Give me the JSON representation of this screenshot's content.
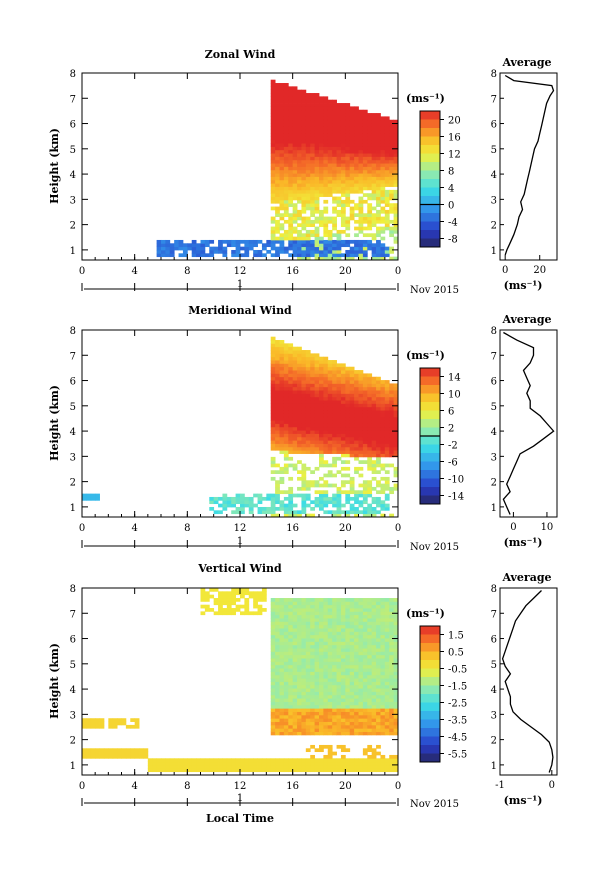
{
  "figure": {
    "x_label": "Local Time",
    "date_label": "Nov 2015",
    "day_label": "1"
  },
  "chart_data": [
    {
      "type": "heatmap",
      "title": "Zonal Wind",
      "ylabel": "Height (km)",
      "xlabel": "Local Time",
      "x_ticks": [
        "0",
        "4",
        "8",
        "12",
        "16",
        "20",
        "0"
      ],
      "xlim": [
        0,
        24
      ],
      "ylim": [
        0.6,
        8
      ],
      "y_ticks": [
        "1",
        "2",
        "3",
        "4",
        "5",
        "6",
        "7",
        "8"
      ],
      "colorbar": {
        "unit": "(ms⁻¹)",
        "ticks": [
          "20",
          "16",
          "12",
          "8",
          "4",
          "0",
          "-4",
          "-8"
        ],
        "range": [
          -10,
          22
        ]
      },
      "profile": {
        "title": "Average",
        "xlabel": "(ms⁻¹)",
        "x_ticks": [
          "0",
          "20"
        ],
        "xlim": [
          -3,
          30
        ],
        "heights": [
          0.8,
          1.0,
          1.3,
          1.6,
          2.0,
          2.3,
          2.6,
          2.9,
          3.2,
          3.5,
          3.8,
          4.1,
          4.4,
          4.7,
          5.0,
          5.3,
          5.6,
          5.9,
          6.2,
          6.5,
          6.8,
          7.1,
          7.3,
          7.5,
          7.7,
          7.9
        ],
        "values": [
          0,
          1,
          3,
          5,
          7,
          8,
          10,
          9,
          11,
          12,
          13,
          14,
          15,
          16,
          17,
          19,
          20,
          21,
          22,
          23,
          24,
          26,
          28,
          27,
          5,
          0
        ]
      }
    },
    {
      "type": "heatmap",
      "title": "Meridional Wind",
      "ylabel": "Height (km)",
      "xlabel": "Local Time",
      "x_ticks": [
        "0",
        "4",
        "8",
        "12",
        "16",
        "20",
        "0"
      ],
      "xlim": [
        0,
        24
      ],
      "ylim": [
        0.6,
        8
      ],
      "y_ticks": [
        "1",
        "2",
        "3",
        "4",
        "5",
        "6",
        "7",
        "8"
      ],
      "colorbar": {
        "unit": "(ms⁻¹)",
        "ticks": [
          "14",
          "10",
          "6",
          "2",
          "-2",
          "-6",
          "-10",
          "-14"
        ],
        "range": [
          -16,
          16
        ]
      },
      "profile": {
        "title": "Average",
        "xlabel": "(ms⁻¹)",
        "x_ticks": [
          "0",
          "10"
        ],
        "xlim": [
          -4,
          13
        ],
        "heights": [
          0.7,
          1.0,
          1.3,
          1.6,
          1.9,
          2.2,
          2.5,
          2.8,
          3.1,
          3.4,
          3.7,
          4.0,
          4.3,
          4.6,
          4.9,
          5.2,
          5.5,
          5.8,
          6.1,
          6.4,
          6.7,
          7.0,
          7.3,
          7.6,
          7.9
        ],
        "values": [
          -1,
          -2,
          -3,
          -1,
          -2,
          -1,
          0,
          1,
          2,
          6,
          9,
          12,
          10,
          8,
          5,
          5,
          4,
          5,
          4,
          3,
          5,
          6,
          6,
          1,
          -3
        ]
      }
    },
    {
      "type": "heatmap",
      "title": "Vertical Wind",
      "ylabel": "Height (km)",
      "xlabel": "Local Time",
      "x_ticks": [
        "0",
        "4",
        "8",
        "12",
        "16",
        "20",
        "0"
      ],
      "xlim": [
        0,
        24
      ],
      "ylim": [
        0.6,
        8
      ],
      "y_ticks": [
        "1",
        "2",
        "3",
        "4",
        "5",
        "6",
        "7",
        "8"
      ],
      "colorbar": {
        "unit": "(ms⁻¹)",
        "ticks": [
          "1.5",
          "0.5",
          "-0.5",
          "-1.5",
          "-2.5",
          "-3.5",
          "-4.5",
          "-5.5"
        ],
        "range": [
          -6,
          2
        ]
      },
      "profile": {
        "title": "Average",
        "xlabel": "(ms⁻¹)",
        "x_ticks": [
          "-1",
          "0"
        ],
        "xlim": [
          -1,
          0.1
        ],
        "heights": [
          0.7,
          1.0,
          1.3,
          1.6,
          1.9,
          2.2,
          2.5,
          2.8,
          3.1,
          3.4,
          3.7,
          4.0,
          4.3,
          4.6,
          4.9,
          5.2,
          5.5,
          5.8,
          6.1,
          6.4,
          6.7,
          7.0,
          7.3,
          7.6,
          7.9
        ],
        "values": [
          -0.05,
          0.0,
          0.02,
          0.0,
          -0.05,
          -0.2,
          -0.4,
          -0.6,
          -0.75,
          -0.8,
          -0.8,
          -0.85,
          -0.9,
          -0.8,
          -0.9,
          -0.95,
          -0.9,
          -0.85,
          -0.8,
          -0.75,
          -0.7,
          -0.6,
          -0.5,
          -0.35,
          -0.2
        ]
      }
    }
  ]
}
